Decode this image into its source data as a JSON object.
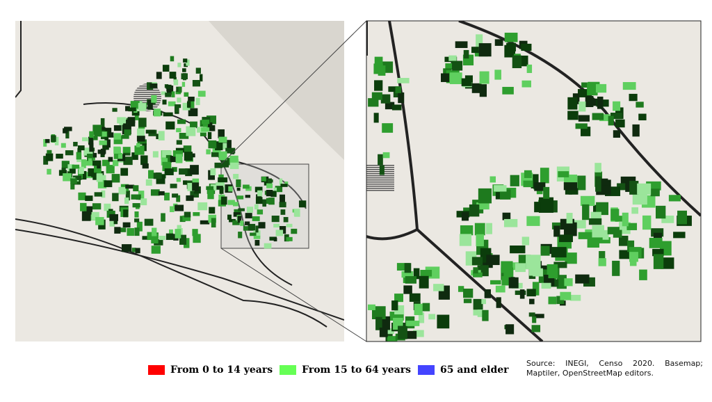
{
  "legend": {
    "items": [
      {
        "label": "From 0 to 14 years",
        "color": "#ff0000"
      },
      {
        "label": "From 15 to 64 years",
        "color": "#66ff55"
      },
      {
        "label": "65 and elder",
        "color": "#4444ff"
      }
    ]
  },
  "source": "Source: INEGI, Censo 2020. Basemap; Maptiler, OpenStreetMap editors."
}
